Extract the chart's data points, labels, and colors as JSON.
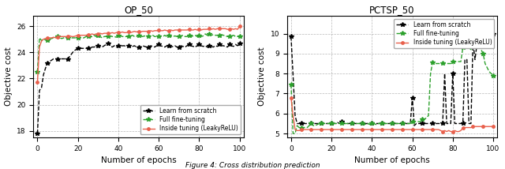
{
  "op50": {
    "title": "OP_50",
    "xlabel": "Number of epochs",
    "ylabel": "Objective cost",
    "xlim": [
      -2,
      102
    ],
    "ylim": [
      17.5,
      26.8
    ],
    "yticks": [
      18,
      20,
      22,
      24,
      26
    ],
    "xticks": [
      0,
      20,
      40,
      60,
      80,
      100
    ],
    "scratch_x": [
      0,
      1,
      2,
      3,
      4,
      5,
      6,
      7,
      8,
      9,
      10,
      11,
      12,
      13,
      14,
      15,
      16,
      17,
      18,
      19,
      20,
      21,
      22,
      23,
      24,
      25,
      26,
      27,
      28,
      29,
      30,
      31,
      32,
      33,
      34,
      35,
      36,
      37,
      38,
      39,
      40,
      41,
      42,
      43,
      44,
      45,
      46,
      47,
      48,
      49,
      50,
      51,
      52,
      53,
      54,
      55,
      56,
      57,
      58,
      59,
      60,
      61,
      62,
      63,
      64,
      65,
      66,
      67,
      68,
      69,
      70,
      71,
      72,
      73,
      74,
      75,
      76,
      77,
      78,
      79,
      80,
      81,
      82,
      83,
      84,
      85,
      86,
      87,
      88,
      89,
      90,
      91,
      92,
      93,
      94,
      95,
      96,
      97,
      98,
      99,
      100
    ],
    "scratch_y": [
      17.8,
      21.1,
      21.3,
      22.3,
      22.8,
      23.2,
      23.3,
      23.4,
      23.5,
      23.5,
      23.5,
      23.5,
      23.5,
      23.5,
      23.5,
      23.5,
      23.7,
      23.9,
      24.1,
      24.2,
      24.3,
      24.3,
      24.3,
      24.3,
      24.3,
      24.3,
      24.35,
      24.4,
      24.4,
      24.45,
      24.5,
      24.45,
      24.4,
      24.5,
      24.6,
      24.7,
      24.5,
      24.4,
      24.5,
      24.4,
      24.5,
      24.45,
      24.5,
      24.5,
      24.45,
      24.5,
      24.4,
      24.45,
      24.5,
      24.4,
      24.4,
      24.4,
      24.5,
      24.45,
      24.4,
      24.4,
      24.5,
      24.45,
      24.4,
      24.5,
      24.6,
      24.5,
      24.45,
      24.4,
      24.5,
      24.5,
      24.4,
      24.45,
      24.5,
      24.4,
      24.4,
      24.5,
      24.45,
      24.4,
      24.5,
      24.6,
      24.5,
      24.45,
      24.4,
      24.5,
      24.6,
      24.5,
      24.45,
      24.5,
      24.4,
      24.5,
      24.45,
      24.4,
      24.5,
      24.45,
      24.6,
      24.5,
      24.5,
      24.45,
      24.4,
      24.6,
      24.5,
      24.45,
      24.6,
      24.5,
      24.7
    ],
    "finetune_x": [
      0,
      1,
      2,
      3,
      4,
      5,
      6,
      7,
      8,
      9,
      10,
      11,
      12,
      13,
      14,
      15,
      16,
      17,
      18,
      19,
      20,
      21,
      22,
      23,
      24,
      25,
      26,
      27,
      28,
      29,
      30,
      31,
      32,
      33,
      34,
      35,
      36,
      37,
      38,
      39,
      40,
      41,
      42,
      43,
      44,
      45,
      46,
      47,
      48,
      49,
      50,
      51,
      52,
      53,
      54,
      55,
      56,
      57,
      58,
      59,
      60,
      61,
      62,
      63,
      64,
      65,
      66,
      67,
      68,
      69,
      70,
      71,
      72,
      73,
      74,
      75,
      76,
      77,
      78,
      79,
      80,
      81,
      82,
      83,
      84,
      85,
      86,
      87,
      88,
      89,
      90,
      91,
      92,
      93,
      94,
      95,
      96,
      97,
      98,
      99,
      100
    ],
    "finetune_y": [
      22.5,
      25.1,
      24.9,
      25.0,
      24.95,
      24.9,
      25.0,
      25.05,
      25.1,
      25.15,
      25.2,
      25.1,
      25.05,
      25.1,
      25.1,
      25.1,
      25.15,
      25.1,
      25.1,
      25.1,
      25.1,
      25.15,
      25.1,
      25.1,
      25.2,
      25.2,
      25.15,
      25.2,
      25.3,
      25.2,
      25.3,
      25.2,
      25.1,
      25.2,
      25.2,
      25.2,
      25.25,
      25.2,
      25.2,
      25.15,
      25.3,
      25.25,
      25.2,
      25.2,
      25.2,
      25.2,
      25.25,
      25.3,
      25.2,
      25.2,
      25.3,
      25.2,
      25.2,
      25.25,
      25.2,
      25.2,
      25.25,
      25.3,
      25.2,
      25.2,
      25.2,
      25.25,
      25.2,
      25.3,
      25.2,
      25.3,
      25.2,
      25.2,
      25.25,
      25.2,
      25.2,
      25.25,
      25.3,
      25.2,
      25.2,
      25.3,
      25.2,
      25.25,
      25.3,
      25.2,
      25.3,
      25.2,
      25.25,
      25.4,
      25.3,
      25.4,
      25.3,
      25.35,
      25.3,
      25.3,
      25.3,
      25.35,
      25.3,
      25.25,
      25.2,
      25.2,
      25.25,
      25.3,
      25.2,
      25.2,
      25.2
    ],
    "inside_x": [
      0,
      1,
      2,
      3,
      4,
      5,
      6,
      7,
      8,
      9,
      10,
      11,
      12,
      13,
      14,
      15,
      16,
      17,
      18,
      19,
      20,
      21,
      22,
      23,
      24,
      25,
      26,
      27,
      28,
      29,
      30,
      31,
      32,
      33,
      34,
      35,
      36,
      37,
      38,
      39,
      40,
      41,
      42,
      43,
      44,
      45,
      46,
      47,
      48,
      49,
      50,
      51,
      52,
      53,
      54,
      55,
      56,
      57,
      58,
      59,
      60,
      61,
      62,
      63,
      64,
      65,
      66,
      67,
      68,
      69,
      70,
      71,
      72,
      73,
      74,
      75,
      76,
      77,
      78,
      79,
      80,
      81,
      82,
      83,
      84,
      85,
      86,
      87,
      88,
      89,
      90,
      91,
      92,
      93,
      94,
      95,
      96,
      97,
      98,
      99,
      100
    ],
    "inside_y": [
      21.7,
      24.4,
      24.85,
      25.0,
      25.05,
      25.1,
      25.1,
      25.1,
      25.15,
      25.1,
      25.15,
      25.2,
      25.2,
      25.2,
      25.2,
      25.2,
      25.25,
      25.2,
      25.2,
      25.25,
      25.3,
      25.3,
      25.3,
      25.3,
      25.3,
      25.35,
      25.35,
      25.4,
      25.35,
      25.4,
      25.4,
      25.45,
      25.4,
      25.45,
      25.45,
      25.45,
      25.45,
      25.5,
      25.45,
      25.5,
      25.5,
      25.5,
      25.55,
      25.5,
      25.5,
      25.55,
      25.5,
      25.55,
      25.6,
      25.55,
      25.6,
      25.55,
      25.6,
      25.6,
      25.6,
      25.6,
      25.65,
      25.6,
      25.65,
      25.65,
      25.7,
      25.65,
      25.65,
      25.7,
      25.65,
      25.65,
      25.7,
      25.65,
      25.7,
      25.7,
      25.7,
      25.7,
      25.7,
      25.7,
      25.7,
      25.75,
      25.7,
      25.7,
      25.75,
      25.7,
      25.75,
      25.7,
      25.75,
      25.75,
      25.75,
      25.8,
      25.75,
      25.8,
      25.75,
      25.8,
      25.8,
      25.8,
      25.8,
      25.8,
      25.75,
      25.75,
      25.8,
      25.75,
      25.8,
      25.75,
      26.0
    ],
    "legend_loc": "lower right",
    "scratch_color": "#000000",
    "finetune_color": "#2ca02c",
    "inside_color": "#e8604c"
  },
  "pctsp50": {
    "title": "PCTSP_50",
    "xlabel": "Number of epochs",
    "ylabel": "Objective cost",
    "xlim": [
      -2,
      102
    ],
    "ylim": [
      4.8,
      10.9
    ],
    "yticks": [
      5,
      6,
      7,
      8,
      9,
      10
    ],
    "xticks": [
      0,
      20,
      40,
      60,
      80,
      100
    ],
    "scratch_x": [
      0,
      1,
      2,
      3,
      4,
      5,
      6,
      7,
      8,
      9,
      10,
      11,
      12,
      13,
      14,
      15,
      16,
      17,
      18,
      19,
      20,
      21,
      22,
      23,
      24,
      25,
      26,
      27,
      28,
      29,
      30,
      31,
      32,
      33,
      34,
      35,
      36,
      37,
      38,
      39,
      40,
      41,
      42,
      43,
      44,
      45,
      46,
      47,
      48,
      49,
      50,
      51,
      52,
      53,
      54,
      55,
      56,
      57,
      58,
      59,
      60,
      61,
      62,
      63,
      64,
      65,
      66,
      67,
      68,
      69,
      70,
      71,
      72,
      73,
      74,
      75,
      76,
      77,
      78,
      79,
      80,
      81,
      82,
      83,
      84,
      85,
      86,
      87,
      88,
      89,
      90,
      91,
      92,
      93,
      94,
      95,
      96,
      97,
      98,
      99,
      100
    ],
    "scratch_y": [
      9.85,
      7.9,
      5.9,
      5.5,
      5.5,
      5.5,
      5.5,
      5.5,
      5.5,
      5.5,
      5.5,
      5.5,
      5.5,
      5.5,
      5.5,
      5.5,
      5.5,
      5.5,
      5.5,
      5.5,
      5.5,
      5.5,
      5.5,
      5.55,
      5.5,
      5.6,
      5.5,
      5.5,
      5.5,
      5.5,
      5.5,
      5.5,
      5.5,
      5.5,
      5.5,
      5.5,
      5.5,
      5.5,
      5.5,
      5.5,
      5.5,
      5.5,
      5.5,
      5.5,
      5.5,
      5.5,
      5.5,
      5.5,
      5.5,
      5.5,
      5.5,
      5.5,
      5.5,
      5.5,
      5.5,
      5.5,
      5.5,
      5.5,
      5.5,
      5.5,
      6.8,
      5.4,
      5.5,
      5.5,
      5.5,
      5.5,
      5.5,
      5.5,
      5.5,
      5.5,
      5.5,
      5.5,
      5.5,
      5.5,
      5.5,
      5.5,
      8.0,
      5.5,
      5.5,
      5.5,
      8.0,
      5.5,
      5.5,
      5.5,
      5.5,
      5.5,
      8.7,
      8.7,
      5.5,
      5.5,
      9.6,
      8.7,
      9.5,
      9.6,
      9.6,
      9.6,
      9.7,
      9.8,
      9.9,
      9.95,
      10.0
    ],
    "finetune_x": [
      0,
      1,
      2,
      3,
      4,
      5,
      6,
      7,
      8,
      9,
      10,
      11,
      12,
      13,
      14,
      15,
      16,
      17,
      18,
      19,
      20,
      21,
      22,
      23,
      24,
      25,
      26,
      27,
      28,
      29,
      30,
      31,
      32,
      33,
      34,
      35,
      36,
      37,
      38,
      39,
      40,
      41,
      42,
      43,
      44,
      45,
      46,
      47,
      48,
      49,
      50,
      51,
      52,
      53,
      54,
      55,
      56,
      57,
      58,
      59,
      60,
      61,
      62,
      63,
      64,
      65,
      66,
      67,
      68,
      69,
      70,
      71,
      72,
      73,
      74,
      75,
      76,
      77,
      78,
      79,
      80,
      81,
      82,
      83,
      84,
      85,
      86,
      87,
      88,
      89,
      90,
      91,
      92,
      93,
      94,
      95,
      96,
      97,
      98,
      99,
      100
    ],
    "finetune_y": [
      7.45,
      5.0,
      5.0,
      5.4,
      5.3,
      5.3,
      5.3,
      5.3,
      5.3,
      5.4,
      5.5,
      5.4,
      5.4,
      5.45,
      5.5,
      5.5,
      5.5,
      5.5,
      5.5,
      5.5,
      5.5,
      5.5,
      5.5,
      5.5,
      5.5,
      5.5,
      5.5,
      5.5,
      5.5,
      5.5,
      5.5,
      5.5,
      5.5,
      5.5,
      5.5,
      5.5,
      5.5,
      5.45,
      5.5,
      5.45,
      5.5,
      5.5,
      5.45,
      5.5,
      5.5,
      5.5,
      5.5,
      5.5,
      5.5,
      5.5,
      5.5,
      5.5,
      5.5,
      5.5,
      5.5,
      5.5,
      5.5,
      5.5,
      5.5,
      5.5,
      5.6,
      5.6,
      5.6,
      5.6,
      5.6,
      5.7,
      5.7,
      5.8,
      5.9,
      8.0,
      8.55,
      8.5,
      8.5,
      8.5,
      8.5,
      8.5,
      8.5,
      8.5,
      8.5,
      8.5,
      8.6,
      8.6,
      8.6,
      8.6,
      8.6,
      9.3,
      9.3,
      9.3,
      9.3,
      9.2,
      10.5,
      10.5,
      9.8,
      9.5,
      9.2,
      9.0,
      8.5,
      8.3,
      8.1,
      8.0,
      7.9
    ],
    "inside_x": [
      0,
      1,
      2,
      3,
      4,
      5,
      6,
      7,
      8,
      9,
      10,
      11,
      12,
      13,
      14,
      15,
      16,
      17,
      18,
      19,
      20,
      21,
      22,
      23,
      24,
      25,
      26,
      27,
      28,
      29,
      30,
      31,
      32,
      33,
      34,
      35,
      36,
      37,
      38,
      39,
      40,
      41,
      42,
      43,
      44,
      45,
      46,
      47,
      48,
      49,
      50,
      51,
      52,
      53,
      54,
      55,
      56,
      57,
      58,
      59,
      60,
      61,
      62,
      63,
      64,
      65,
      66,
      67,
      68,
      69,
      70,
      71,
      72,
      73,
      74,
      75,
      76,
      77,
      78,
      79,
      80,
      81,
      82,
      83,
      84,
      85,
      86,
      87,
      88,
      89,
      90,
      91,
      92,
      93,
      94,
      95,
      96,
      97,
      98,
      99,
      100
    ],
    "inside_y": [
      6.8,
      5.9,
      5.2,
      5.15,
      5.15,
      5.2,
      5.2,
      5.2,
      5.2,
      5.2,
      5.2,
      5.2,
      5.2,
      5.2,
      5.2,
      5.2,
      5.2,
      5.2,
      5.2,
      5.2,
      5.2,
      5.2,
      5.2,
      5.2,
      5.2,
      5.2,
      5.2,
      5.2,
      5.2,
      5.2,
      5.2,
      5.2,
      5.2,
      5.2,
      5.2,
      5.2,
      5.2,
      5.2,
      5.2,
      5.2,
      5.2,
      5.2,
      5.2,
      5.2,
      5.2,
      5.2,
      5.2,
      5.2,
      5.2,
      5.2,
      5.2,
      5.2,
      5.2,
      5.2,
      5.2,
      5.2,
      5.2,
      5.2,
      5.2,
      5.2,
      5.2,
      5.2,
      5.2,
      5.2,
      5.2,
      5.2,
      5.2,
      5.2,
      5.2,
      5.2,
      5.2,
      5.2,
      5.2,
      5.2,
      5.15,
      5.1,
      5.15,
      5.1,
      5.15,
      5.1,
      5.1,
      5.15,
      5.1,
      5.1,
      5.15,
      5.3,
      5.3,
      5.3,
      5.3,
      5.3,
      5.35,
      5.35,
      5.35,
      5.35,
      5.35,
      5.35,
      5.35,
      5.35,
      5.35,
      5.35,
      5.35
    ],
    "legend_loc": "upper right",
    "scratch_color": "#000000",
    "finetune_color": "#2ca02c",
    "inside_color": "#e8604c"
  },
  "caption": "Figure 4: Cross distribution prediction",
  "figure_bgcolor": "#ffffff"
}
